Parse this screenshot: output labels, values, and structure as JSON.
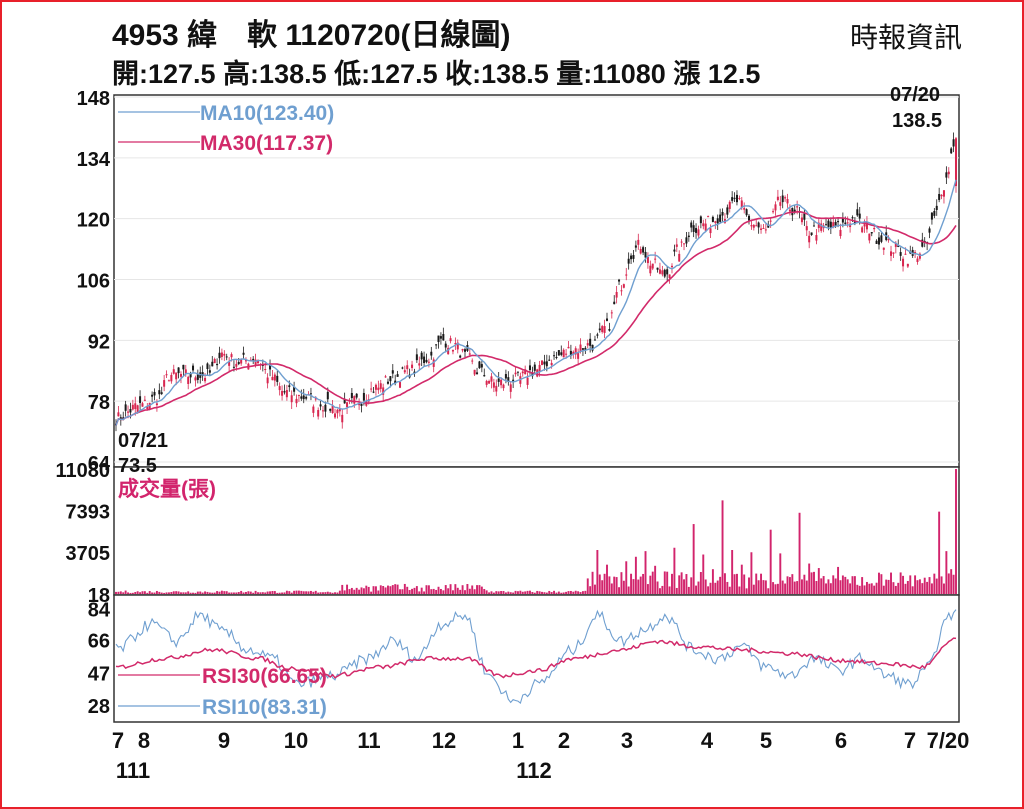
{
  "header": {
    "title": "4953  緯　軟 1120720(日線圖)",
    "source": "時報資訊",
    "stats": "開:127.5 高:138.5 低:127.5 收:138.5 量:11080 漲 12.5"
  },
  "colors": {
    "frame": "#e8202a",
    "up_candle": "#d8264f",
    "down_candle": "#1a1a1a",
    "ma10": "#6f9fd0",
    "ma30": "#d22a6a",
    "volume": "#d2246c",
    "rsi30": "#d22a6a",
    "rsi10": "#6f9fd0",
    "grid": "#e6e6e6"
  },
  "chart_data": [
    {
      "type": "candlestick",
      "name": "price",
      "y_ticks": [
        148,
        134,
        120,
        106,
        92,
        78,
        64
      ],
      "ylim": [
        64,
        148
      ],
      "legend": [
        {
          "key": "ma10",
          "label": "MA10(123.40)"
        },
        {
          "key": "ma30",
          "label": "MA30(117.37)"
        }
      ],
      "annotations": {
        "start_date": "07/21",
        "start_value": "73.5",
        "end_date": "07/20",
        "end_value": "138.5"
      },
      "anchors": [
        [
          0,
          74
        ],
        [
          10,
          77
        ],
        [
          18,
          79
        ],
        [
          22,
          84
        ],
        [
          30,
          84
        ],
        [
          38,
          84
        ],
        [
          44,
          89
        ],
        [
          50,
          87
        ],
        [
          58,
          88
        ],
        [
          64,
          84
        ],
        [
          70,
          80
        ],
        [
          78,
          79
        ],
        [
          86,
          77
        ],
        [
          94,
          76
        ],
        [
          100,
          78
        ],
        [
          108,
          81
        ],
        [
          114,
          83
        ],
        [
          122,
          85
        ],
        [
          130,
          88
        ],
        [
          136,
          92
        ],
        [
          140,
          91
        ],
        [
          146,
          88
        ],
        [
          150,
          85
        ],
        [
          158,
          82
        ],
        [
          166,
          83
        ],
        [
          174,
          85
        ],
        [
          182,
          88
        ],
        [
          190,
          90
        ],
        [
          198,
          91
        ],
        [
          204,
          95
        ],
        [
          210,
          105
        ],
        [
          214,
          112
        ],
        [
          218,
          114
        ],
        [
          222,
          110
        ],
        [
          228,
          107
        ],
        [
          234,
          113
        ],
        [
          240,
          118
        ],
        [
          246,
          119
        ],
        [
          252,
          121
        ],
        [
          258,
          124
        ],
        [
          264,
          119
        ],
        [
          270,
          117
        ],
        [
          276,
          124
        ],
        [
          282,
          122
        ],
        [
          288,
          117
        ],
        [
          294,
          118
        ],
        [
          300,
          118
        ],
        [
          306,
          120
        ],
        [
          312,
          118
        ],
        [
          318,
          115
        ],
        [
          324,
          113
        ],
        [
          330,
          111
        ],
        [
          336,
          113
        ],
        [
          340,
          120
        ],
        [
          344,
          128
        ],
        [
          349,
          138.5
        ]
      ],
      "ma10_last": 123.4,
      "ma30_last": 117.37,
      "n_days": 350
    },
    {
      "type": "bar",
      "name": "volume",
      "label": "成交量(張)",
      "y_ticks": [
        11080,
        7393,
        3705,
        18
      ],
      "ylim": [
        0,
        11080
      ],
      "spikes": [
        [
          200,
          3900
        ],
        [
          204,
          2600
        ],
        [
          208,
          1500
        ],
        [
          212,
          2900
        ],
        [
          216,
          3300
        ],
        [
          220,
          3800
        ],
        [
          224,
          2500
        ],
        [
          228,
          2000
        ],
        [
          232,
          4100
        ],
        [
          236,
          1300
        ],
        [
          240,
          6200
        ],
        [
          244,
          3500
        ],
        [
          248,
          2200
        ],
        [
          252,
          8300
        ],
        [
          256,
          3900
        ],
        [
          260,
          2600
        ],
        [
          264,
          3700
        ],
        [
          268,
          1800
        ],
        [
          272,
          5700
        ],
        [
          276,
          3600
        ],
        [
          280,
          1500
        ],
        [
          284,
          7200
        ],
        [
          288,
          2700
        ],
        [
          292,
          2300
        ],
        [
          296,
          1300
        ],
        [
          300,
          2400
        ],
        [
          304,
          1300
        ],
        [
          310,
          1500
        ],
        [
          316,
          1000
        ],
        [
          322,
          1900
        ],
        [
          328,
          900
        ],
        [
          334,
          1300
        ],
        [
          338,
          1500
        ],
        [
          342,
          7300
        ],
        [
          345,
          3800
        ],
        [
          347,
          2200
        ],
        [
          349,
          11080
        ]
      ]
    },
    {
      "type": "line",
      "name": "rsi",
      "y_ticks": [
        84,
        66,
        47,
        28
      ],
      "ylim": [
        20,
        90
      ],
      "series": [
        {
          "key": "rsi30",
          "name": "RSI30(66.65)",
          "last": 66.65,
          "anchors": [
            [
              0,
              50
            ],
            [
              20,
              55
            ],
            [
              40,
              60
            ],
            [
              60,
              55
            ],
            [
              70,
              50
            ],
            [
              90,
              45
            ],
            [
              110,
              50
            ],
            [
              130,
              55
            ],
            [
              145,
              55
            ],
            [
              160,
              45
            ],
            [
              175,
              48
            ],
            [
              190,
              55
            ],
            [
              210,
              60
            ],
            [
              225,
              65
            ],
            [
              240,
              62
            ],
            [
              260,
              60
            ],
            [
              280,
              58
            ],
            [
              300,
              54
            ],
            [
              320,
              52
            ],
            [
              335,
              50
            ],
            [
              349,
              66.65
            ]
          ]
        },
        {
          "key": "rsi10",
          "name": "RSI10(83.31)",
          "last": 83.31,
          "anchors": [
            [
              0,
              60
            ],
            [
              15,
              75
            ],
            [
              25,
              65
            ],
            [
              35,
              80
            ],
            [
              45,
              70
            ],
            [
              55,
              60
            ],
            [
              65,
              55
            ],
            [
              75,
              40
            ],
            [
              90,
              45
            ],
            [
              105,
              55
            ],
            [
              115,
              65
            ],
            [
              125,
              55
            ],
            [
              135,
              75
            ],
            [
              145,
              80
            ],
            [
              155,
              45
            ],
            [
              165,
              30
            ],
            [
              175,
              40
            ],
            [
              190,
              60
            ],
            [
              200,
              80
            ],
            [
              210,
              65
            ],
            [
              220,
              72
            ],
            [
              228,
              80
            ],
            [
              240,
              60
            ],
            [
              250,
              55
            ],
            [
              260,
              62
            ],
            [
              270,
              50
            ],
            [
              280,
              45
            ],
            [
              290,
              55
            ],
            [
              300,
              48
            ],
            [
              310,
              55
            ],
            [
              320,
              45
            ],
            [
              330,
              40
            ],
            [
              338,
              50
            ],
            [
              344,
              75
            ],
            [
              349,
              83.31
            ]
          ]
        }
      ]
    }
  ],
  "x_axis": {
    "month_labels": [
      "7",
      "8",
      "9",
      "10",
      "11",
      "12",
      "1",
      "2",
      "3",
      "4",
      "5",
      "6",
      "7",
      "7/20"
    ],
    "year_labels": [
      "111",
      "112"
    ]
  }
}
